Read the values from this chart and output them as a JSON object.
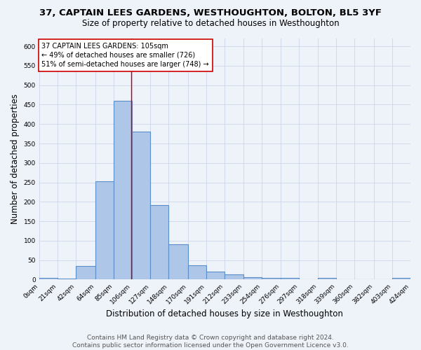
{
  "title": "37, CAPTAIN LEES GARDENS, WESTHOUGHTON, BOLTON, BL5 3YF",
  "subtitle": "Size of property relative to detached houses in Westhoughton",
  "xlabel": "Distribution of detached houses by size in Westhoughton",
  "ylabel": "Number of detached properties",
  "bin_edges": [
    0,
    21,
    42,
    64,
    85,
    106,
    127,
    148,
    170,
    191,
    212,
    233,
    254,
    276,
    297,
    318,
    339,
    360,
    382,
    403,
    424
  ],
  "bar_heights": [
    4,
    2,
    35,
    253,
    460,
    381,
    191,
    91,
    37,
    20,
    13,
    6,
    4,
    4,
    0,
    5,
    0,
    0,
    0,
    4
  ],
  "tick_labels": [
    "0sqm",
    "21sqm",
    "42sqm",
    "64sqm",
    "85sqm",
    "106sqm",
    "127sqm",
    "148sqm",
    "170sqm",
    "191sqm",
    "212sqm",
    "233sqm",
    "254sqm",
    "276sqm",
    "297sqm",
    "318sqm",
    "339sqm",
    "360sqm",
    "382sqm",
    "403sqm",
    "424sqm"
  ],
  "bar_color": "#aec6e8",
  "bar_edge_color": "#5b8fc9",
  "grid_color": "#ccd6e8",
  "background_color": "#eef2f9",
  "ref_line_x": 105,
  "ref_line_color": "#cc0000",
  "annotation_text": "37 CAPTAIN LEES GARDENS: 105sqm\n← 49% of detached houses are smaller (726)\n51% of semi-detached houses are larger (748) →",
  "annotation_box_color": "#ffffff",
  "annotation_box_edge": "#cc0000",
  "ylim": [
    0,
    620
  ],
  "yticks": [
    0,
    50,
    100,
    150,
    200,
    250,
    300,
    350,
    400,
    450,
    500,
    550,
    600
  ],
  "footer_line1": "Contains HM Land Registry data © Crown copyright and database right 2024.",
  "footer_line2": "Contains public sector information licensed under the Open Government Licence v3.0.",
  "title_fontsize": 9.5,
  "subtitle_fontsize": 8.5,
  "axis_label_fontsize": 8.5,
  "tick_fontsize": 6.5,
  "annotation_fontsize": 7,
  "footer_fontsize": 6.5
}
